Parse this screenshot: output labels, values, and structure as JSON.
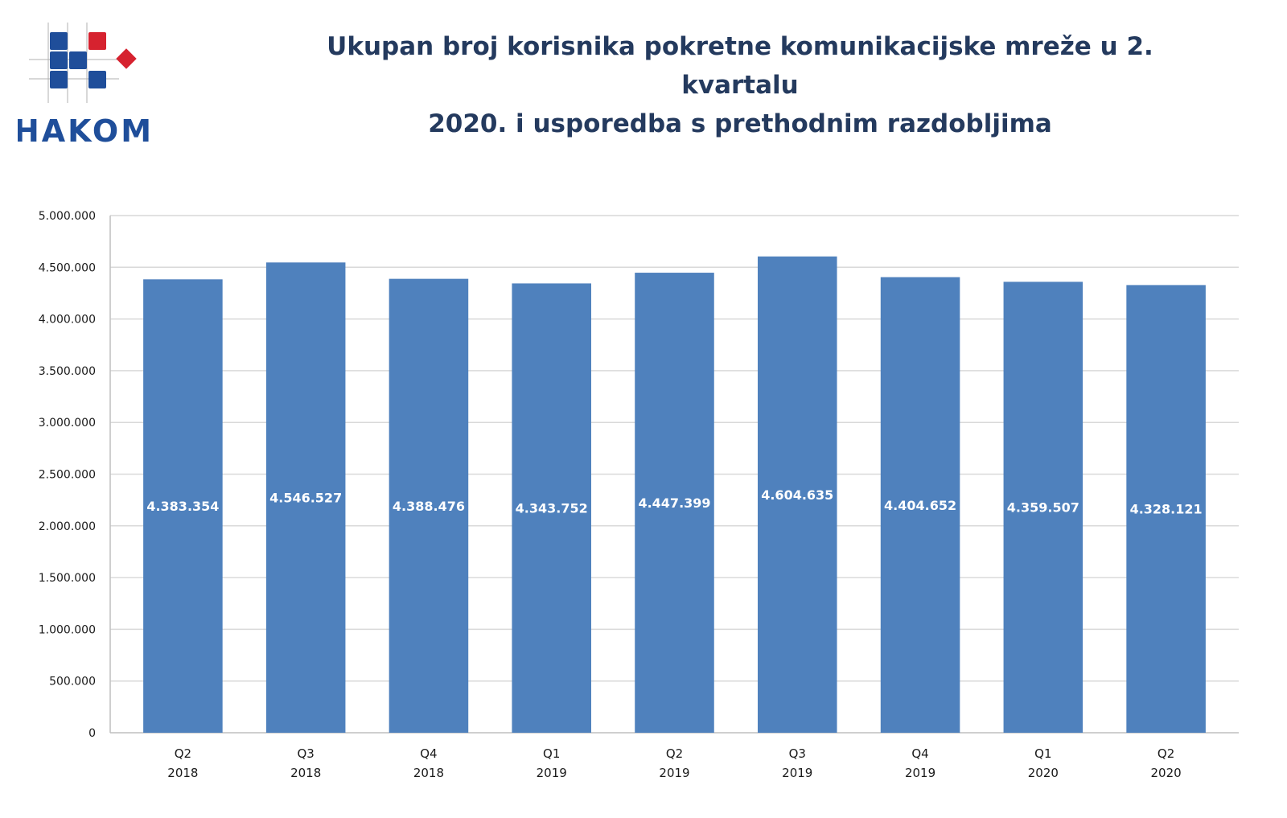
{
  "logo": {
    "text": "HAKOM",
    "icon": "hakom-squares-logo",
    "colors": {
      "blue": "#1f4e9a",
      "red": "#d6222f"
    }
  },
  "chart_data": {
    "type": "bar",
    "title_lines": [
      "Ukupan broj korisnika pokretne komunikacijske mreže u 2. kvartalu",
      "2020. i usporedba s prethodnim razdobljima"
    ],
    "categories": [
      [
        "Q2",
        "2018"
      ],
      [
        "Q3",
        "2018"
      ],
      [
        "Q4",
        "2018"
      ],
      [
        "Q1",
        "2019"
      ],
      [
        "Q2",
        "2019"
      ],
      [
        "Q3",
        "2019"
      ],
      [
        "Q4",
        "2019"
      ],
      [
        "Q1",
        "2020"
      ],
      [
        "Q2",
        "2020"
      ]
    ],
    "values": [
      4383354,
      4546527,
      4388476,
      4343752,
      4447399,
      4604635,
      4404652,
      4359507,
      4328121
    ],
    "value_labels": [
      "4.383.354",
      "4.546.527",
      "4.388.476",
      "4.343.752",
      "4.447.399",
      "4.604.635",
      "4.404.652",
      "4.359.507",
      "4.328.121"
    ],
    "ylim": [
      0,
      5000000
    ],
    "yticks": [
      0,
      500000,
      1000000,
      1500000,
      2000000,
      2500000,
      3000000,
      3500000,
      4000000,
      4500000,
      5000000
    ],
    "ytick_labels": [
      "0",
      "500.000",
      "1.000.000",
      "1.500.000",
      "2.000.000",
      "2.500.000",
      "3.000.000",
      "3.500.000",
      "4.000.000",
      "4.500.000",
      "5.000.000"
    ],
    "grid": true,
    "legend": "none",
    "bar_color": "#4f81bd",
    "grid_color": "#d9d9d9",
    "axis_color": "#bfbfbf"
  }
}
